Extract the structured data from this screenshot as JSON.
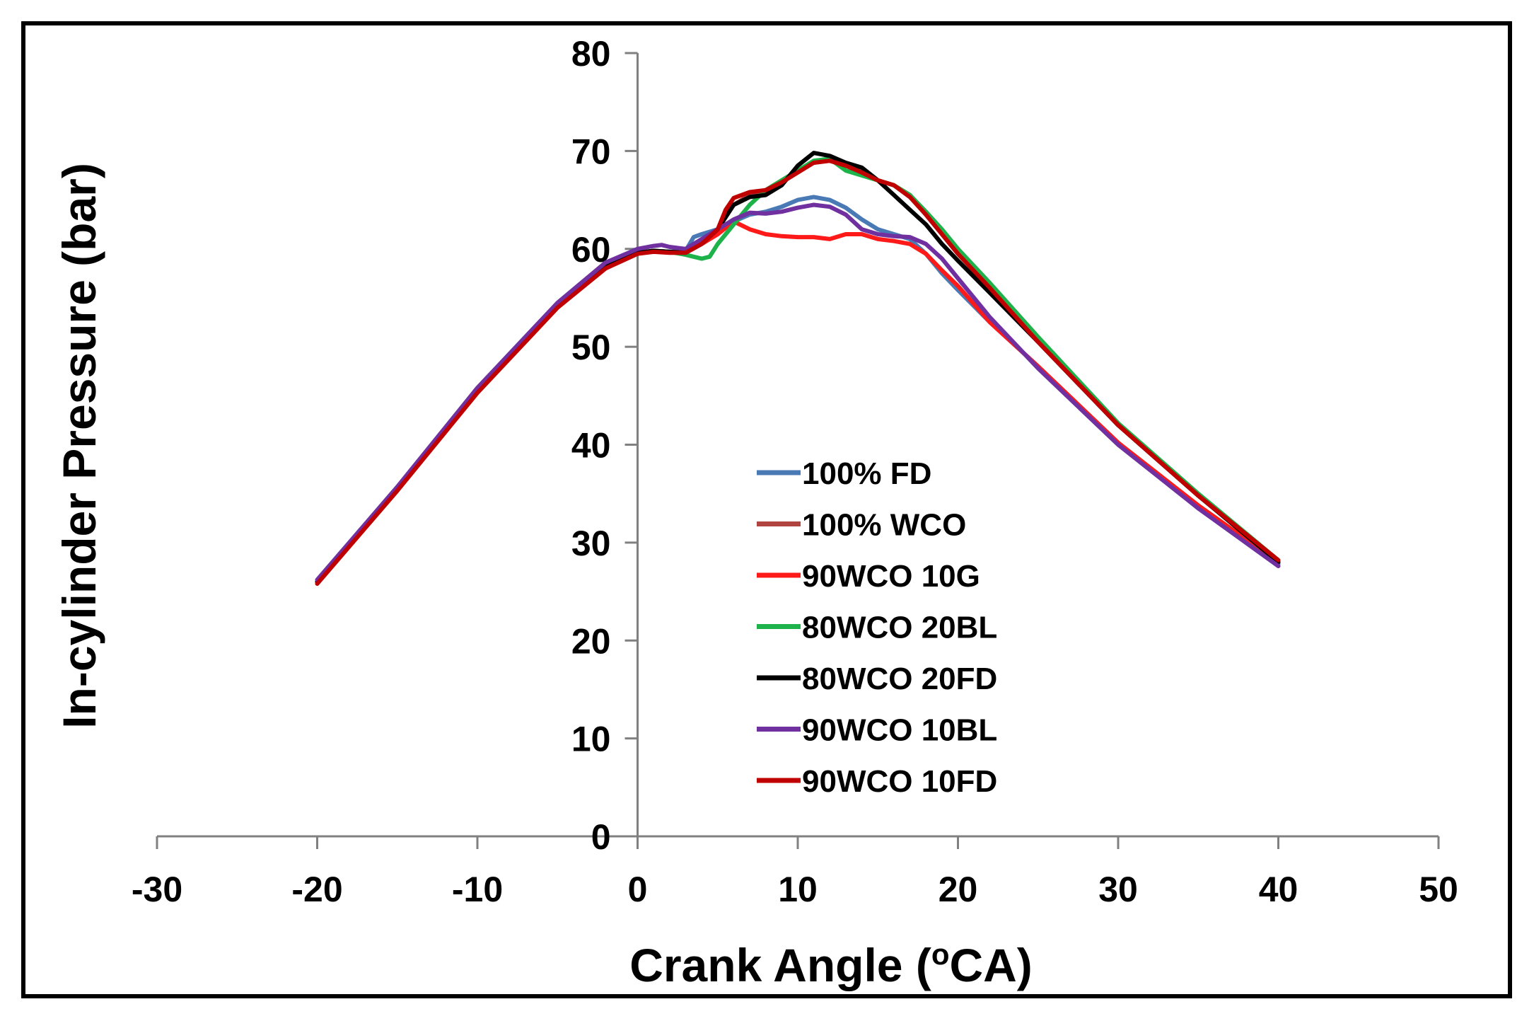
{
  "chart_data": {
    "type": "line",
    "xlabel": "Crank Angle (",
    "xlabel_sup": "o",
    "xlabel_unit": "CA)",
    "ylabel": "In-cylinder Pressure (bar)",
    "xlim": [
      -30,
      50
    ],
    "ylim": [
      0,
      80
    ],
    "x_ticks": [
      -30,
      -20,
      -10,
      0,
      10,
      20,
      30,
      40,
      50
    ],
    "y_ticks": [
      0,
      10,
      20,
      30,
      40,
      50,
      60,
      70,
      80
    ],
    "x_tick_labels": [
      "-30",
      "-20",
      "-10",
      "0",
      "10",
      "20",
      "30",
      "40",
      "50"
    ],
    "y_tick_labels": [
      "0",
      "10",
      "20",
      "30",
      "40",
      "50",
      "60",
      "70",
      "80"
    ],
    "grid": false,
    "legend_position": "center",
    "series": [
      {
        "name": "100% FD",
        "color": "#4a7ab5",
        "points": [
          [
            -20,
            26
          ],
          [
            -15,
            35.5
          ],
          [
            -10,
            45.5
          ],
          [
            -5,
            54.2
          ],
          [
            -2,
            58.2
          ],
          [
            0,
            59.6
          ],
          [
            1,
            59.8
          ],
          [
            2,
            59.7
          ],
          [
            3,
            59.8
          ],
          [
            3.5,
            61.2
          ],
          [
            4,
            61.5
          ],
          [
            5,
            62
          ],
          [
            6,
            62.8
          ],
          [
            7,
            63.5
          ],
          [
            8,
            63.8
          ],
          [
            9,
            64.3
          ],
          [
            10,
            65
          ],
          [
            11,
            65.3
          ],
          [
            12,
            65
          ],
          [
            13,
            64.2
          ],
          [
            14,
            63
          ],
          [
            15,
            62
          ],
          [
            16,
            61.5
          ],
          [
            17,
            61
          ],
          [
            18,
            59.5
          ],
          [
            19,
            57.5
          ],
          [
            20,
            55.8
          ],
          [
            22,
            52.5
          ],
          [
            25,
            48
          ],
          [
            30,
            40.2
          ],
          [
            35,
            33.5
          ],
          [
            40,
            27.8
          ]
        ]
      },
      {
        "name": "100% WCO",
        "color": "#b04440",
        "points": [
          [
            -20,
            26
          ],
          [
            -15,
            35.5
          ],
          [
            -10,
            45.5
          ],
          [
            -5,
            54.2
          ],
          [
            -2,
            58.2
          ],
          [
            0,
            59.6
          ],
          [
            1,
            59.8
          ],
          [
            2,
            59.7
          ],
          [
            3,
            59.6
          ],
          [
            4,
            60.5
          ],
          [
            5,
            62
          ],
          [
            6,
            64.5
          ],
          [
            7,
            65.5
          ],
          [
            8,
            66
          ],
          [
            9,
            67
          ],
          [
            10,
            68
          ],
          [
            11,
            68.8
          ],
          [
            12,
            69
          ],
          [
            13,
            68.5
          ],
          [
            14,
            67.8
          ],
          [
            15,
            67
          ],
          [
            16,
            66.5
          ],
          [
            17,
            65.5
          ],
          [
            18,
            63.5
          ],
          [
            19,
            61.5
          ],
          [
            20,
            59.5
          ],
          [
            22,
            56
          ],
          [
            25,
            50.5
          ],
          [
            30,
            42
          ],
          [
            35,
            34.8
          ],
          [
            40,
            28.2
          ]
        ]
      },
      {
        "name": "90WCO 10G",
        "color": "#ff1a1a",
        "points": [
          [
            -20,
            26
          ],
          [
            -15,
            35.5
          ],
          [
            -10,
            45.5
          ],
          [
            -5,
            54.2
          ],
          [
            -2,
            58.2
          ],
          [
            0,
            59.6
          ],
          [
            1,
            59.8
          ],
          [
            2,
            59.7
          ],
          [
            3,
            59.6
          ],
          [
            4,
            60.5
          ],
          [
            5,
            61.5
          ],
          [
            6,
            62.8
          ],
          [
            7,
            62
          ],
          [
            8,
            61.5
          ],
          [
            9,
            61.3
          ],
          [
            10,
            61.2
          ],
          [
            11,
            61.2
          ],
          [
            12,
            61
          ],
          [
            13,
            61.5
          ],
          [
            14,
            61.5
          ],
          [
            15,
            61
          ],
          [
            16,
            60.8
          ],
          [
            17,
            60.5
          ],
          [
            18,
            59.5
          ],
          [
            19,
            57.8
          ],
          [
            20,
            56.2
          ],
          [
            22,
            52.5
          ],
          [
            25,
            48
          ],
          [
            30,
            40.2
          ],
          [
            35,
            33.8
          ],
          [
            40,
            28
          ]
        ]
      },
      {
        "name": "80WCO 20BL",
        "color": "#1db34a",
        "points": [
          [
            -20,
            26
          ],
          [
            -15,
            35.5
          ],
          [
            -10,
            45.5
          ],
          [
            -5,
            54.2
          ],
          [
            -2,
            58.2
          ],
          [
            0,
            59.6
          ],
          [
            1,
            59.8
          ],
          [
            2,
            59.7
          ],
          [
            3,
            59.4
          ],
          [
            4,
            59
          ],
          [
            4.5,
            59.2
          ],
          [
            5,
            60.5
          ],
          [
            6,
            62.5
          ],
          [
            7,
            64.5
          ],
          [
            8,
            66
          ],
          [
            9,
            67
          ],
          [
            10,
            68
          ],
          [
            11,
            69
          ],
          [
            12,
            69.2
          ],
          [
            13,
            68
          ],
          [
            14,
            67.5
          ],
          [
            15,
            67
          ],
          [
            16,
            66.5
          ],
          [
            17,
            65.5
          ],
          [
            18,
            63.8
          ],
          [
            19,
            62
          ],
          [
            20,
            60
          ],
          [
            22,
            56.5
          ],
          [
            25,
            51
          ],
          [
            30,
            42.2
          ],
          [
            35,
            35
          ],
          [
            40,
            28.2
          ]
        ]
      },
      {
        "name": "80WCO 20FD",
        "color": "#000000",
        "points": [
          [
            -20,
            26
          ],
          [
            -15,
            35.5
          ],
          [
            -10,
            45.5
          ],
          [
            -5,
            54.2
          ],
          [
            -2,
            58.2
          ],
          [
            0,
            59.6
          ],
          [
            1,
            59.8
          ],
          [
            2,
            59.7
          ],
          [
            3,
            59.6
          ],
          [
            4,
            60.5
          ],
          [
            5,
            62
          ],
          [
            6,
            64.5
          ],
          [
            7,
            65.3
          ],
          [
            8,
            65.5
          ],
          [
            9,
            66.5
          ],
          [
            10,
            68.5
          ],
          [
            11,
            69.8
          ],
          [
            12,
            69.5
          ],
          [
            13,
            68.8
          ],
          [
            14,
            68.3
          ],
          [
            15,
            67
          ],
          [
            16,
            65.5
          ],
          [
            17,
            64
          ],
          [
            18,
            62.5
          ],
          [
            19,
            60.5
          ],
          [
            20,
            58.8
          ],
          [
            22,
            55.5
          ],
          [
            25,
            50.5
          ],
          [
            30,
            42
          ],
          [
            35,
            34.8
          ],
          [
            40,
            28
          ]
        ]
      },
      {
        "name": "90WCO 10BL",
        "color": "#7030a0",
        "points": [
          [
            -20,
            26.2
          ],
          [
            -15,
            35.7
          ],
          [
            -10,
            45.8
          ],
          [
            -5,
            54.5
          ],
          [
            -2,
            58.6
          ],
          [
            0,
            60
          ],
          [
            1,
            60.3
          ],
          [
            1.5,
            60.4
          ],
          [
            2,
            60.2
          ],
          [
            3,
            60
          ],
          [
            4,
            61
          ],
          [
            5,
            62
          ],
          [
            6,
            63
          ],
          [
            7,
            63.7
          ],
          [
            8,
            63.6
          ],
          [
            9,
            63.8
          ],
          [
            10,
            64.2
          ],
          [
            11,
            64.5
          ],
          [
            12,
            64.3
          ],
          [
            13,
            63.5
          ],
          [
            14,
            62
          ],
          [
            15,
            61.5
          ],
          [
            16,
            61.3
          ],
          [
            17,
            61.2
          ],
          [
            18,
            60.5
          ],
          [
            19,
            59
          ],
          [
            20,
            57
          ],
          [
            22,
            53
          ],
          [
            25,
            47.8
          ],
          [
            30,
            40
          ],
          [
            35,
            33.5
          ],
          [
            40,
            27.6
          ]
        ]
      },
      {
        "name": "90WCO 10FD",
        "color": "#c00000",
        "points": [
          [
            -20,
            25.8
          ],
          [
            -15,
            35.3
          ],
          [
            -10,
            45.3
          ],
          [
            -5,
            54
          ],
          [
            -2,
            58
          ],
          [
            0,
            59.5
          ],
          [
            1,
            59.7
          ],
          [
            2,
            59.6
          ],
          [
            3,
            59.6
          ],
          [
            4,
            60.5
          ],
          [
            5,
            62
          ],
          [
            5.5,
            64
          ],
          [
            6,
            65.2
          ],
          [
            7,
            65.8
          ],
          [
            8,
            66
          ],
          [
            9,
            66.8
          ],
          [
            10,
            67.8
          ],
          [
            11,
            68.8
          ],
          [
            12,
            69
          ],
          [
            13,
            68.5
          ],
          [
            14,
            67.8
          ],
          [
            15,
            67
          ],
          [
            16,
            66.5
          ],
          [
            17,
            65.3
          ],
          [
            18,
            63.5
          ],
          [
            19,
            61.5
          ],
          [
            20,
            59.5
          ],
          [
            22,
            56
          ],
          [
            25,
            50.5
          ],
          [
            30,
            42
          ],
          [
            35,
            34.8
          ],
          [
            40,
            28.2
          ]
        ]
      }
    ]
  }
}
